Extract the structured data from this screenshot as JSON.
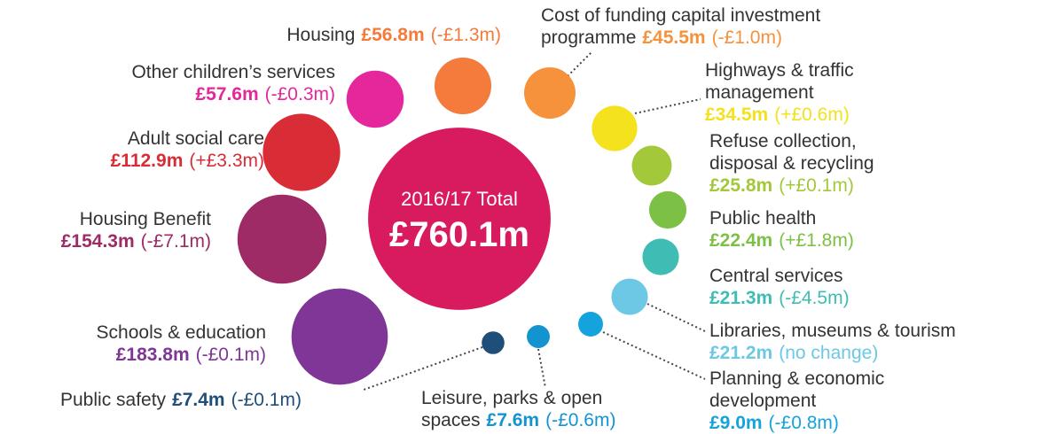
{
  "chart_data": {
    "type": "bubble",
    "total_label": "2016/17 Total",
    "total": 760.1,
    "total_value_label": "£760.1m",
    "total_color": "#d81b5e",
    "categories": [
      [
        "Housing"
      ],
      [
        "Other children’s services"
      ],
      [
        "Adult social care"
      ],
      [
        "Housing Benefit"
      ],
      [
        "Schools & education"
      ],
      [
        "Public safety"
      ],
      [
        "Leisure, parks & open",
        "spaces"
      ],
      [
        "Planning & economic",
        "development"
      ],
      [
        "Libraries, museums & tourism"
      ],
      [
        "Central services"
      ],
      [
        "Public health"
      ],
      [
        "Refuse collection,",
        "disposal & recycling"
      ],
      [
        "Highways & traffic",
        "management"
      ],
      [
        "Cost of funding capital investment",
        "programme"
      ]
    ],
    "values": [
      56.8,
      57.6,
      112.9,
      154.3,
      183.8,
      7.4,
      7.6,
      9.0,
      21.2,
      21.3,
      22.4,
      25.8,
      34.5,
      45.5
    ],
    "value_labels": [
      "£56.8m",
      "£57.6m",
      "£112.9m",
      "£154.3m",
      "£183.8m",
      "£7.4m",
      "£7.6m",
      "£9.0m",
      "£21.2m",
      "£21.3m",
      "£22.4m",
      "£25.8m",
      "£34.5m",
      "£45.5m"
    ],
    "changes": [
      "(-£1.3m)",
      "(-£0.3m)",
      "(+£3.3m)",
      "(-£7.1m)",
      "(-£0.1m)",
      "(-£0.1m)",
      "(-£0.6m)",
      "(-£0.8m)",
      "(no change)",
      "(-£4.5m)",
      "(+£1.8m)",
      "(+£0.1m)",
      "(+£0.6m)",
      "(-£1.0m)"
    ],
    "colors": [
      "#f47b3c",
      "#e5279b",
      "#d82c36",
      "#9e2a66",
      "#7f3696",
      "#1f4e79",
      "#1493d1",
      "#14a3dc",
      "#6cc8e4",
      "#3fbdb4",
      "#7cc145",
      "#a3c93a",
      "#f3e21d",
      "#f5923b"
    ]
  }
}
